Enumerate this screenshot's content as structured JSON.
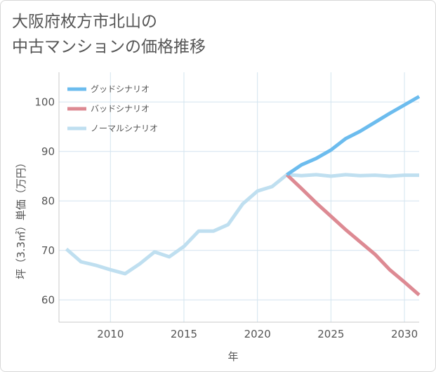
{
  "title_lines": [
    "大阪府枚方市北山の",
    "中古マンションの価格推移"
  ],
  "chart_data": {
    "type": "line",
    "xlabel": "年",
    "ylabel": "坪（3.3㎡）単価（万円）",
    "xlim": [
      2006.5,
      2031
    ],
    "ylim": [
      55.5,
      106
    ],
    "x_ticks": [
      2010,
      2015,
      2020,
      2025,
      2030
    ],
    "y_ticks": [
      60,
      70,
      80,
      90,
      100
    ],
    "grid": true,
    "legend_position": "top-left",
    "series": [
      {
        "name": "グッドシナリオ",
        "color": "#6cbcee",
        "x": [
          2022,
          2023,
          2024,
          2025,
          2026,
          2027,
          2028,
          2029,
          2030,
          2031
        ],
        "y": [
          85.3,
          87.3,
          88.6,
          90.3,
          92.6,
          94.1,
          95.9,
          97.7,
          99.4,
          101.1
        ]
      },
      {
        "name": "バッドシナリオ",
        "color": "#dd8a93",
        "x": [
          2022,
          2023,
          2024,
          2025,
          2026,
          2027,
          2028,
          2029,
          2030,
          2031
        ],
        "y": [
          85.3,
          82.5,
          79.6,
          76.9,
          74.2,
          71.7,
          69.2,
          66.1,
          63.6,
          61.0
        ]
      },
      {
        "name": "ノーマルシナリオ",
        "color": "#bfdff0",
        "x": [
          2007,
          2008,
          2009,
          2010,
          2011,
          2012,
          2013,
          2014,
          2015,
          2016,
          2017,
          2018,
          2019,
          2020,
          2021,
          2022,
          2023,
          2024,
          2025,
          2026,
          2027,
          2028,
          2029,
          2030,
          2031
        ],
        "y": [
          70.3,
          67.7,
          67.0,
          66.1,
          65.3,
          67.3,
          69.7,
          68.7,
          70.8,
          73.9,
          73.9,
          75.2,
          79.4,
          82.0,
          82.9,
          85.3,
          85.1,
          85.3,
          85.0,
          85.3,
          85.1,
          85.2,
          85.0,
          85.2,
          85.2
        ]
      }
    ]
  }
}
